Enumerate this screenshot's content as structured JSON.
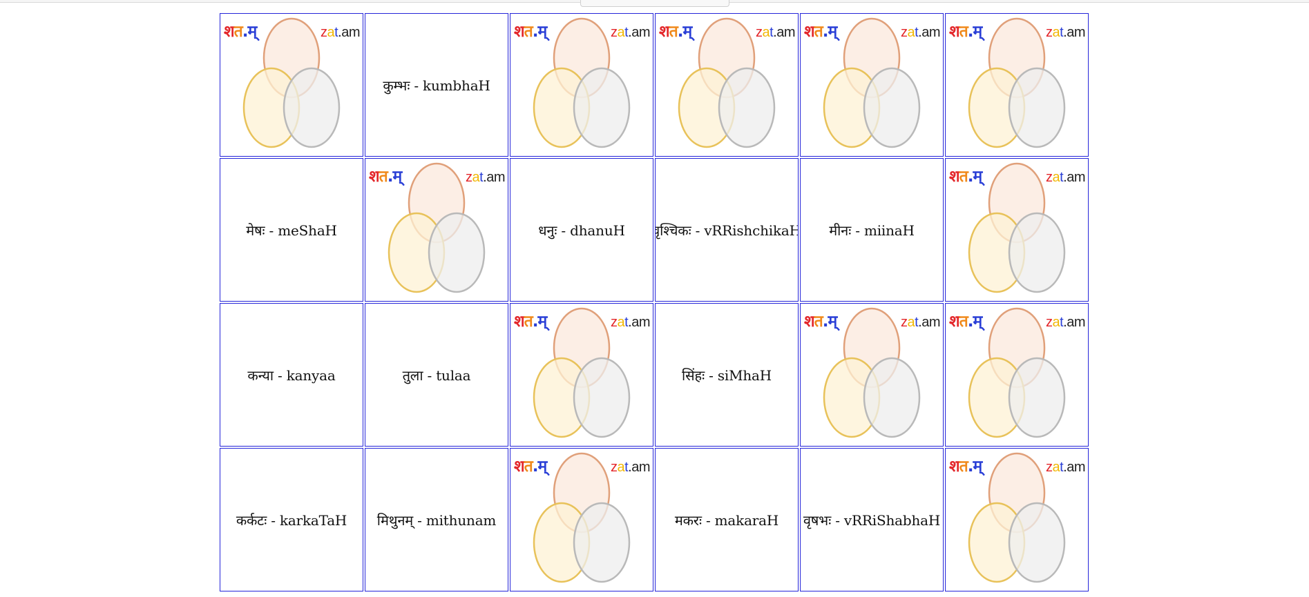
{
  "colors": {
    "card_border": "#2323d9",
    "logo_red": "#e3262a",
    "logo_orange": "#f08a1c",
    "logo_blue": "#2a3fd6",
    "logo_yellow": "#f2b705",
    "logo_dark": "#222222",
    "circle_top_fill": "#fbe8dc",
    "circle_top_stroke": "#e0a07a",
    "circle_left_fill": "#fdf2d4",
    "circle_left_stroke": "#e8c25a",
    "circle_right_fill": "#eeeeee",
    "circle_right_stroke": "#b9b9b9"
  },
  "logo": {
    "left_part1": "श",
    "left_part2": "त",
    "left_part3": ".म्",
    "right_part1": "z",
    "right_part2": "a",
    "right_part3": "t",
    "right_part4": ".am"
  },
  "board": {
    "rows": [
      [
        {
          "face": "back"
        },
        {
          "face": "front",
          "text": "कुम्भः - kumbhaH"
        },
        {
          "face": "back"
        },
        {
          "face": "back"
        },
        {
          "face": "back"
        },
        {
          "face": "back"
        }
      ],
      [
        {
          "face": "front",
          "text": "मेषः - meShaH"
        },
        {
          "face": "back"
        },
        {
          "face": "front",
          "text": "धनुः - dhanuH"
        },
        {
          "face": "front",
          "text": "वृश्चिकः - vRRishchikaH"
        },
        {
          "face": "front",
          "text": "मीनः - miinaH"
        },
        {
          "face": "back"
        }
      ],
      [
        {
          "face": "front",
          "text": "कन्या - kanyaa"
        },
        {
          "face": "front",
          "text": "तुला - tulaa"
        },
        {
          "face": "back"
        },
        {
          "face": "front",
          "text": "सिंहः - siMhaH"
        },
        {
          "face": "back"
        },
        {
          "face": "back"
        }
      ],
      [
        {
          "face": "front",
          "text": "कर्कटः - karkaTaH"
        },
        {
          "face": "front",
          "text": "मिथुनम् - mithunam"
        },
        {
          "face": "back"
        },
        {
          "face": "front",
          "text": "मकरः - makaraH"
        },
        {
          "face": "front",
          "text": "वृषभः - vRRiShabhaH"
        },
        {
          "face": "back"
        }
      ]
    ]
  }
}
